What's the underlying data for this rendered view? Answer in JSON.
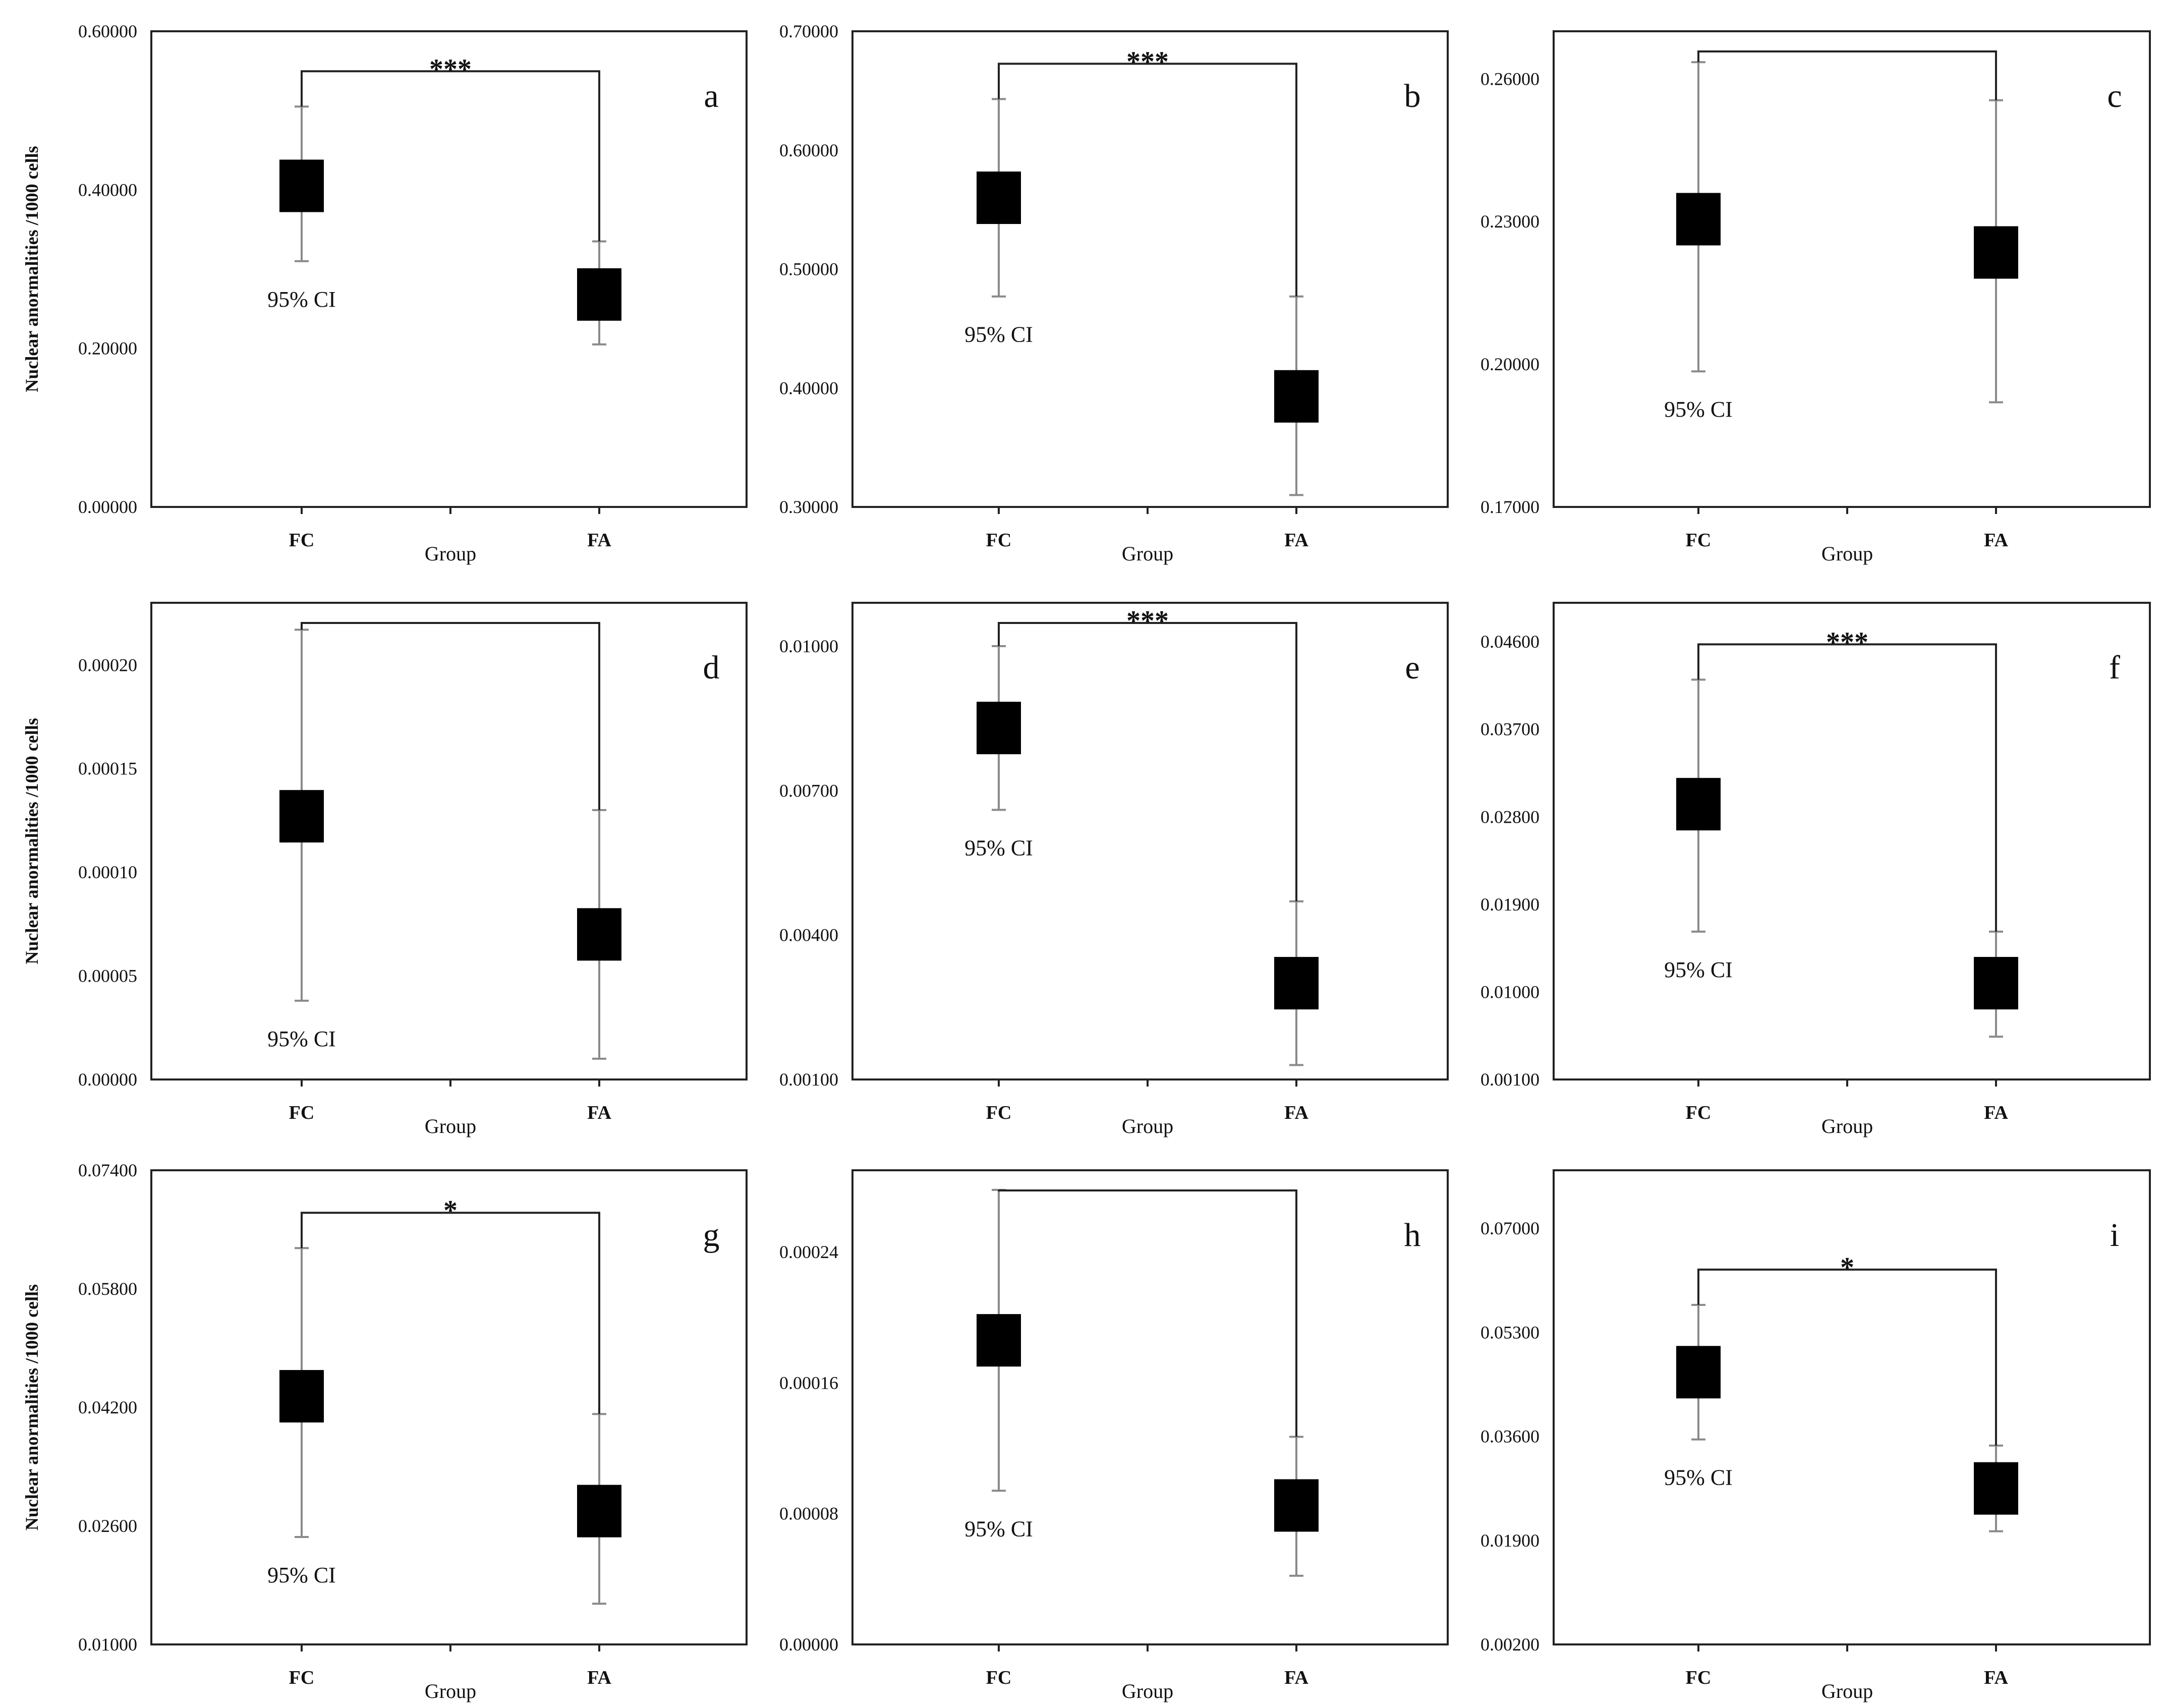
{
  "figure": {
    "y_axis_label": "Nuclear anormalities /1000 cells",
    "x_axis_label": "Group",
    "ci_label": "95% CI"
  },
  "colors": {
    "marker": "#000000",
    "errorbar": "#8a8a8a",
    "bracket": "#222222",
    "axis": "#222222"
  },
  "chart_data": [
    {
      "panel": "a",
      "type": "scatter",
      "title": "a",
      "xlabel": "Group",
      "ylabel": "Nuclear anormalities /1000 cells",
      "categories": [
        "FC",
        "FA"
      ],
      "ylim": [
        0,
        0.6
      ],
      "yticks": [
        "0.00000",
        "0.20000",
        "0.40000",
        "0.60000"
      ],
      "ytick_values": [
        0,
        0.2,
        0.4,
        0.6
      ],
      "series": [
        {
          "name": "Mean with 95% CI",
          "values": [
            0.405,
            0.268
          ],
          "ci_low": [
            0.31,
            0.205
          ],
          "ci_high": [
            0.505,
            0.335
          ]
        }
      ],
      "significance": "***"
    },
    {
      "panel": "b",
      "type": "scatter",
      "title": "b",
      "xlabel": "Group",
      "ylabel": "",
      "categories": [
        "FC",
        "FA"
      ],
      "ylim": [
        0.3,
        0.7
      ],
      "yticks": [
        "0.30000",
        "0.40000",
        "0.50000",
        "0.60000",
        "0.70000"
      ],
      "ytick_values": [
        0.3,
        0.4,
        0.5,
        0.6,
        0.7
      ],
      "series": [
        {
          "name": "Mean with 95% CI",
          "values": [
            0.56,
            0.393
          ],
          "ci_low": [
            0.477,
            0.31
          ],
          "ci_high": [
            0.643,
            0.477
          ]
        }
      ],
      "significance": "***"
    },
    {
      "panel": "c",
      "type": "scatter",
      "title": "c",
      "xlabel": "Group",
      "ylabel": "",
      "categories": [
        "FC",
        "FA"
      ],
      "ylim": [
        0.17,
        0.27
      ],
      "yticks": [
        "0.17000",
        "0.20000",
        "0.23000",
        "0.26000"
      ],
      "ytick_values": [
        0.17,
        0.2,
        0.23,
        0.26
      ],
      "series": [
        {
          "name": "Mean with 95% CI",
          "values": [
            0.2305,
            0.2235
          ],
          "ci_low": [
            0.1985,
            0.192
          ],
          "ci_high": [
            0.2635,
            0.2555
          ]
        }
      ],
      "significance": ""
    },
    {
      "panel": "d",
      "type": "scatter",
      "title": "d",
      "xlabel": "Group",
      "ylabel": "Nuclear anormalities /1000 cells",
      "categories": [
        "FC",
        "FA"
      ],
      "ylim": [
        0,
        0.00023
      ],
      "yticks": [
        "0.00000",
        "0.00005",
        "0.00010",
        "0.00015",
        "0.00020"
      ],
      "ytick_values": [
        0,
        5e-05,
        0.0001,
        0.00015,
        0.0002
      ],
      "series": [
        {
          "name": "Mean with 95% CI",
          "values": [
            0.000127,
            7e-05
          ],
          "ci_low": [
            3.8e-05,
            1e-05
          ],
          "ci_high": [
            0.000217,
            0.00013
          ]
        }
      ],
      "significance": ""
    },
    {
      "panel": "e",
      "type": "scatter",
      "title": "e",
      "xlabel": "Group",
      "ylabel": "",
      "categories": [
        "FC",
        "FA"
      ],
      "ylim": [
        0.001,
        0.0109
      ],
      "yticks": [
        "0.00100",
        "0.00400",
        "0.00700",
        "0.01000"
      ],
      "ytick_values": [
        0.001,
        0.004,
        0.007,
        0.01
      ],
      "series": [
        {
          "name": "Mean with 95% CI",
          "values": [
            0.0083,
            0.003
          ],
          "ci_low": [
            0.0066,
            0.0013
          ],
          "ci_high": [
            0.01,
            0.0047
          ]
        }
      ],
      "significance": "***"
    },
    {
      "panel": "f",
      "type": "scatter",
      "title": "f",
      "xlabel": "Group",
      "ylabel": "",
      "categories": [
        "FC",
        "FA"
      ],
      "ylim": [
        0.001,
        0.05
      ],
      "yticks": [
        "0.00100",
        "0.01000",
        "0.01900",
        "0.02800",
        "0.03700",
        "0.04600"
      ],
      "ytick_values": [
        0.001,
        0.01,
        0.019,
        0.028,
        0.037,
        0.046
      ],
      "series": [
        {
          "name": "Mean with 95% CI",
          "values": [
            0.0293,
            0.0109
          ],
          "ci_low": [
            0.0162,
            0.0054
          ],
          "ci_high": [
            0.0421,
            0.0162
          ]
        }
      ],
      "significance": "***"
    },
    {
      "panel": "g",
      "type": "scatter",
      "title": "g",
      "xlabel": "Group",
      "ylabel": "Nuclear anormalities /1000 cells",
      "categories": [
        "FC",
        "FA"
      ],
      "ylim": [
        0.01,
        0.074
      ],
      "yticks": [
        "0.01000",
        "0.02600",
        "0.04200",
        "0.05800",
        "0.07400"
      ],
      "ytick_values": [
        0.01,
        0.026,
        0.042,
        0.058,
        0.074
      ],
      "series": [
        {
          "name": "Mean with 95% CI",
          "values": [
            0.0435,
            0.028
          ],
          "ci_low": [
            0.0245,
            0.0155
          ],
          "ci_high": [
            0.0635,
            0.0411
          ]
        }
      ],
      "significance": "*"
    },
    {
      "panel": "h",
      "type": "scatter",
      "title": "h",
      "xlabel": "Group",
      "ylabel": "",
      "categories": [
        "FC",
        "FA"
      ],
      "ylim": [
        0,
        0.00029
      ],
      "yticks": [
        "0.00000",
        "0.00008",
        "0.00016",
        "0.00024"
      ],
      "ytick_values": [
        0,
        8e-05,
        0.00016,
        0.00024
      ],
      "series": [
        {
          "name": "Mean with 95% CI",
          "values": [
            0.000186,
            8.5e-05
          ],
          "ci_low": [
            9.4e-05,
            4.2e-05
          ],
          "ci_high": [
            0.000278,
            0.000127
          ]
        }
      ],
      "significance": ""
    },
    {
      "panel": "i",
      "type": "scatter",
      "title": "i",
      "xlabel": "Group",
      "ylabel": "",
      "categories": [
        "FC",
        "FA"
      ],
      "ylim": [
        0.002,
        0.0795
      ],
      "yticks": [
        "0.00200",
        "0.01900",
        "0.03600",
        "0.05300",
        "0.07000"
      ],
      "ytick_values": [
        0.002,
        0.019,
        0.036,
        0.053,
        0.07
      ],
      "series": [
        {
          "name": "Mean with 95% CI",
          "values": [
            0.0465,
            0.0275
          ],
          "ci_low": [
            0.0355,
            0.0205
          ],
          "ci_high": [
            0.0575,
            0.0345
          ]
        }
      ],
      "significance": "*"
    }
  ]
}
